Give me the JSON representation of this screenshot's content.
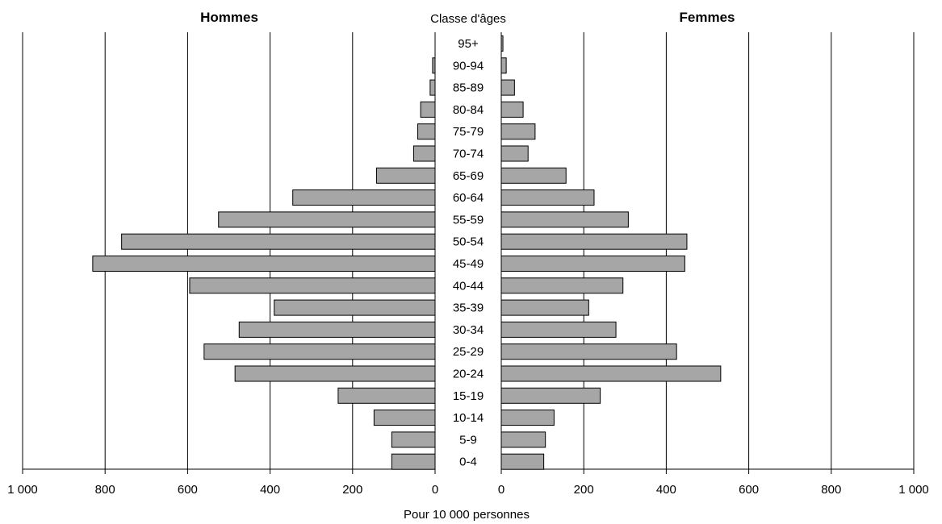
{
  "chart_data": {
    "type": "bar",
    "subtype": "population-pyramid",
    "left_title": "Hommes",
    "right_title": "Femmes",
    "center_title": "Classe d'âges",
    "xlabel": "Pour 10 000 personnes",
    "xlim": [
      0,
      1000
    ],
    "x_ticks": [
      0,
      200,
      400,
      600,
      800,
      1000
    ],
    "x_tick_labels": [
      "0",
      "200",
      "400",
      "600",
      "800",
      "1 000"
    ],
    "grid": true,
    "categories": [
      "95+",
      "90-94",
      "85-89",
      "80-84",
      "75-79",
      "70-74",
      "65-69",
      "60-64",
      "55-59",
      "50-54",
      "45-49",
      "40-44",
      "35-39",
      "30-34",
      "25-29",
      "20-24",
      "15-19",
      "10-14",
      "5-9",
      "0-4"
    ],
    "series": [
      {
        "name": "Hommes",
        "values": [
          0,
          6,
          12,
          35,
          42,
          52,
          142,
          345,
          525,
          760,
          830,
          595,
          390,
          475,
          560,
          485,
          235,
          148,
          105,
          105
        ]
      },
      {
        "name": "Femmes",
        "values": [
          4,
          12,
          32,
          53,
          82,
          65,
          157,
          225,
          308,
          450,
          445,
          295,
          212,
          278,
          425,
          532,
          240,
          128,
          107,
          103
        ]
      }
    ],
    "colors": {
      "bar_fill": "#a6a6a6",
      "bar_stroke": "#000000"
    }
  }
}
